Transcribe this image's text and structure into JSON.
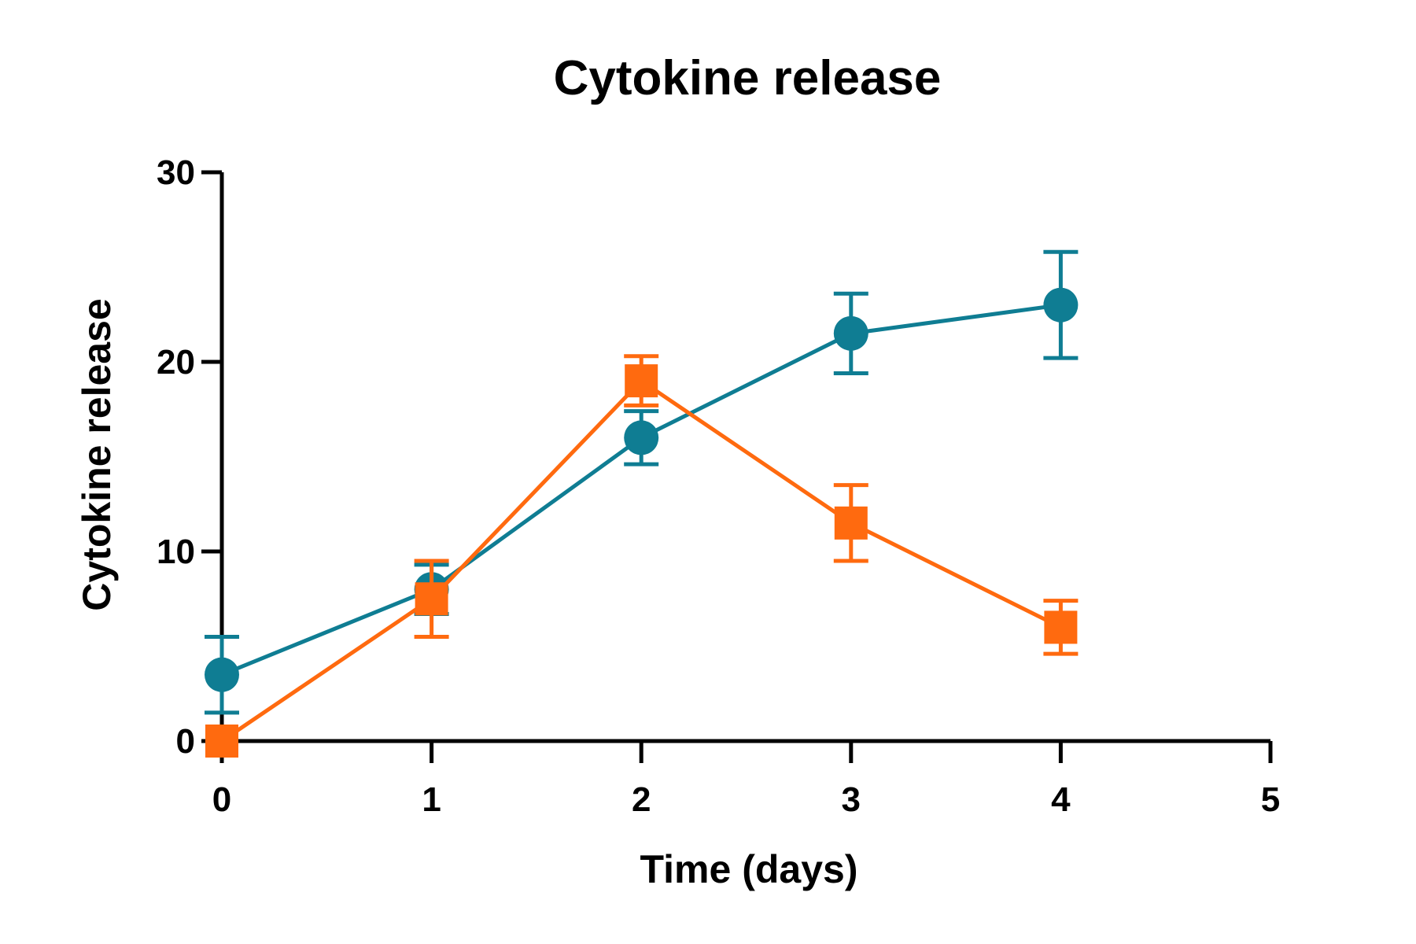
{
  "chart_data": {
    "type": "line",
    "title": "Cytokine release",
    "xlabel": "Time (days)",
    "ylabel": "Cytokine release",
    "xlim": [
      0,
      5
    ],
    "ylim": [
      0,
      30
    ],
    "x_ticks": [
      "0",
      "1",
      "2",
      "3",
      "4",
      "5"
    ],
    "y_ticks": [
      "0",
      "10",
      "20",
      "30"
    ],
    "grid": false,
    "legend": "none",
    "series": [
      {
        "marker": "circle",
        "color": "#0f7d93",
        "x": [
          0,
          1,
          2,
          3,
          4
        ],
        "y": [
          3.5,
          8.0,
          16.0,
          21.5,
          23.0
        ],
        "error": [
          2.0,
          1.3,
          1.4,
          2.1,
          2.8
        ]
      },
      {
        "marker": "square",
        "color": "#ff6a0f",
        "x": [
          0,
          1,
          2,
          3,
          4
        ],
        "y": [
          0.0,
          7.5,
          19.0,
          11.5,
          6.0
        ],
        "error": [
          0.0,
          2.0,
          1.3,
          2.0,
          1.4
        ]
      }
    ]
  }
}
